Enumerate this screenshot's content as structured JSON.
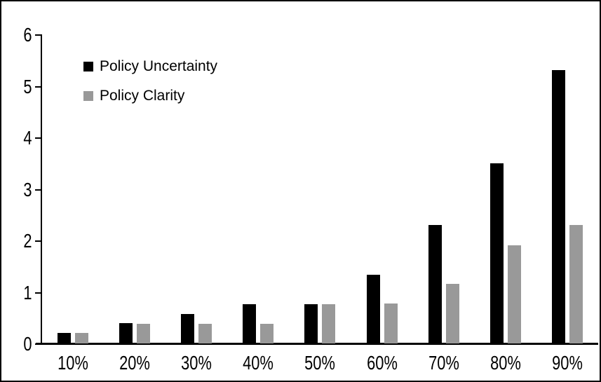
{
  "chart_data": {
    "type": "bar",
    "title": "",
    "xlabel": "",
    "ylabel": "",
    "categories": [
      "10%",
      "20%",
      "30%",
      "40%",
      "50%",
      "60%",
      "70%",
      "80%",
      "90%"
    ],
    "series": [
      {
        "name": "Policy Uncertainty",
        "color": "#000000",
        "values": [
          0.2,
          0.4,
          0.57,
          0.76,
          0.76,
          1.33,
          2.3,
          3.5,
          5.3
        ]
      },
      {
        "name": "Policy Clarity",
        "color": "#999999",
        "values": [
          0.2,
          0.38,
          0.38,
          0.38,
          0.76,
          0.77,
          1.15,
          1.9,
          2.3
        ]
      }
    ],
    "ylim": [
      0,
      6
    ],
    "yticks": [
      0,
      1,
      2,
      3,
      4,
      5,
      6
    ],
    "grid": "off",
    "legend_position": "upper-left-inside"
  },
  "colors": {
    "axis": "#000000",
    "frame_border": "#000000",
    "background": "#ffffff"
  }
}
